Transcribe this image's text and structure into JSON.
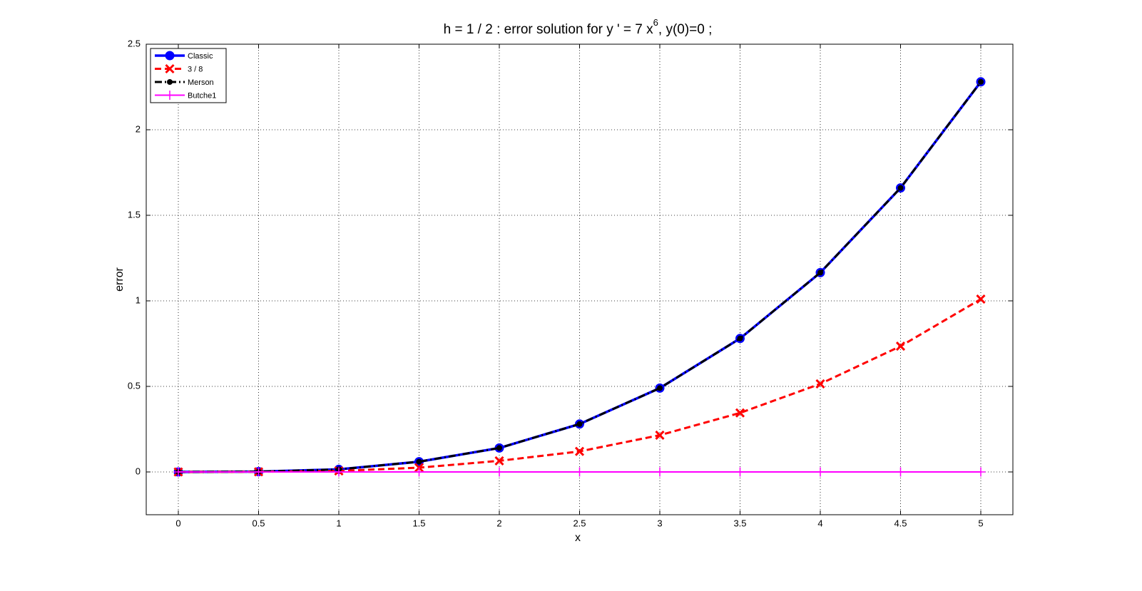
{
  "chart_data": {
    "type": "line",
    "title": "h = 1 / 2 :      error solution for    y ' = 7 x",
    "title_superscript": "6",
    "title_end": ",   y(0)=0 ;",
    "x_label": "x",
    "y_label": "error",
    "x": [
      0,
      0.5,
      1,
      1.5,
      2,
      2.5,
      3,
      3.5,
      4,
      4.5,
      5
    ],
    "series": [
      {
        "name": "Classic",
        "color": "#0000ff",
        "values": [
          0,
          0.002,
          0.015,
          0.06,
          0.14,
          0.28,
          0.49,
          0.78,
          1.165,
          1.66,
          2.28
        ]
      },
      {
        "name": "3 / 8",
        "color": "#ff0000",
        "values": [
          0,
          0.001,
          0.006,
          0.025,
          0.065,
          0.12,
          0.215,
          0.345,
          0.515,
          0.735,
          1.01
        ]
      },
      {
        "name": "Merson",
        "color": "#000000",
        "values": [
          0,
          0.002,
          0.015,
          0.06,
          0.14,
          0.28,
          0.49,
          0.78,
          1.165,
          1.66,
          2.28
        ]
      },
      {
        "name": "Butche1",
        "color": "#ff00ff",
        "values": [
          0,
          0,
          0,
          0,
          0,
          0,
          0,
          0,
          0,
          0,
          0
        ]
      }
    ],
    "xlim": [
      -0.2,
      5.2
    ],
    "ylim": [
      -0.25,
      2.5
    ],
    "xticks": [
      0,
      0.5,
      1,
      1.5,
      2,
      2.5,
      3,
      3.5,
      4,
      4.5,
      5
    ],
    "yticks": [
      0,
      0.5,
      1,
      1.5,
      2,
      2.5
    ],
    "grid": true,
    "legend": "top-left"
  }
}
